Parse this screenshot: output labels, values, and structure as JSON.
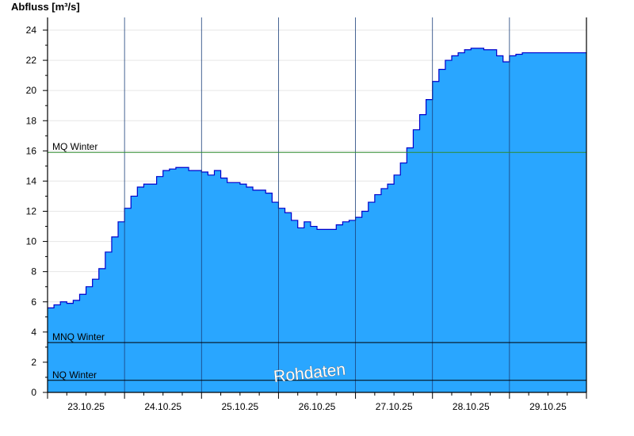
{
  "chart_data": {
    "type": "area",
    "ylabel": "Abfluss [m³/s]",
    "ylim": [
      0,
      24.5
    ],
    "yticks": [
      "0",
      "2",
      "4",
      "6",
      "8",
      "10",
      "12",
      "14",
      "16",
      "18",
      "20",
      "22",
      "24"
    ],
    "xlim_days": [
      0,
      7
    ],
    "day_labels": [
      "23.10.25",
      "24.10.25",
      "25.10.25",
      "26.10.25",
      "27.10.25",
      "28.10.25",
      "29.10.25"
    ],
    "grid": "horizontal",
    "fill_color": "#29a6ff",
    "line_color": "#0000cc",
    "series": [
      {
        "x_hours": [
          0,
          2,
          4,
          6,
          8,
          10,
          12,
          14,
          16,
          18,
          20,
          22,
          24,
          26,
          28,
          30,
          32,
          34,
          36,
          38,
          40,
          42,
          44,
          46,
          48,
          50,
          52,
          54,
          56,
          58,
          60,
          62,
          64,
          66,
          68,
          70,
          72,
          74,
          76,
          78,
          80,
          82,
          84,
          86,
          88,
          90,
          92,
          94,
          96,
          98,
          100,
          102,
          104,
          106,
          108,
          110,
          112,
          114,
          116,
          118,
          120,
          122,
          124,
          126,
          128,
          130,
          132,
          134,
          136,
          138,
          140,
          142,
          144,
          146,
          148,
          150,
          152,
          154,
          156,
          158,
          160,
          162,
          164,
          166,
          168
        ],
        "values": [
          5.6,
          5.8,
          6.0,
          5.9,
          6.1,
          6.5,
          7.0,
          7.5,
          8.2,
          9.3,
          10.3,
          11.3,
          12.2,
          13.0,
          13.6,
          13.8,
          13.8,
          14.3,
          14.7,
          14.8,
          14.9,
          14.9,
          14.7,
          14.7,
          14.6,
          14.4,
          14.7,
          14.2,
          13.9,
          13.9,
          13.8,
          13.6,
          13.4,
          13.4,
          13.2,
          12.6,
          12.2,
          11.9,
          11.4,
          10.9,
          11.3,
          11.0,
          10.8,
          10.8,
          10.8,
          11.1,
          11.3,
          11.4,
          11.6,
          12.0,
          12.6,
          13.1,
          13.5,
          13.8,
          14.4,
          15.2,
          16.2,
          17.4,
          18.4,
          19.4,
          20.6,
          21.4,
          22.0,
          22.3,
          22.5,
          22.7,
          22.8,
          22.8,
          22.7,
          22.7,
          22.3,
          21.9,
          22.3,
          22.4,
          22.5,
          22.5,
          22.5,
          22.5,
          22.5,
          22.5,
          22.5,
          22.5,
          22.5,
          22.5,
          22.5
        ]
      }
    ],
    "reference_lines": [
      {
        "label": "MQ Winter",
        "value": 15.9,
        "color": "#2e8b2e"
      },
      {
        "label": "MNQ Winter",
        "value": 3.3,
        "color": "#000000"
      },
      {
        "label": "NQ Winter",
        "value": 0.8,
        "color": "#000000"
      }
    ],
    "watermark": "Rohdaten"
  }
}
